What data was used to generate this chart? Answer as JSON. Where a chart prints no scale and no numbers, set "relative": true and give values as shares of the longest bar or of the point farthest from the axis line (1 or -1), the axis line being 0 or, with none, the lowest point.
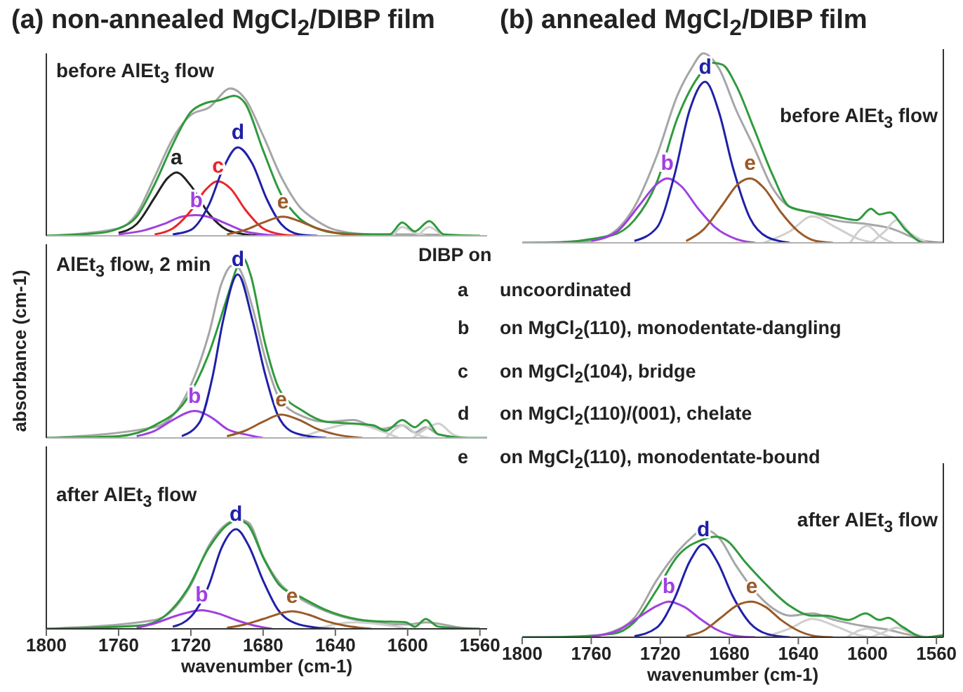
{
  "chart_data": [
    {
      "type": "line",
      "title": "(a)  non-annealed MgCl$_{2}$/DIBP film",
      "subtitle": "before AlEt$_{3}$ flow",
      "relative": true,
      "xlim": [
        1800,
        1556
      ],
      "xticks": [
        1800,
        1760,
        1720,
        1680,
        1640,
        1600,
        1560
      ],
      "tick_labels": false,
      "series": [
        {
          "color": "#a6a6a6",
          "x": [
            1800,
            1760,
            1750,
            1740,
            1730,
            1720,
            1710,
            1698,
            1690,
            1680,
            1670,
            1660,
            1650,
            1640,
            1620,
            1600,
            1560
          ],
          "values": [
            0,
            0.05,
            0.15,
            0.4,
            0.66,
            0.82,
            0.87,
            1,
            0.93,
            0.68,
            0.4,
            0.2,
            0.1,
            0.04,
            0.01,
            0.01,
            0
          ]
        },
        {
          "color": "#cfcfcf",
          "x": [
            1608,
            1603,
            1596,
            1590
          ],
          "values": [
            0,
            0.06,
            0.02,
            0
          ]
        },
        {
          "color": "#cfcfcf",
          "x": [
            1594,
            1588,
            1581,
            1575
          ],
          "values": [
            0,
            0.06,
            0.01,
            0
          ]
        },
        {
          "color": "#2f9a3c",
          "x": [
            1800,
            1770,
            1760,
            1750,
            1740,
            1730,
            1720,
            1712,
            1704,
            1696,
            1690,
            1680,
            1670,
            1660,
            1650,
            1640,
            1620,
            1610,
            1603,
            1596,
            1588,
            1580,
            1560
          ],
          "values": [
            0,
            0.02,
            0.05,
            0.13,
            0.35,
            0.62,
            0.84,
            0.9,
            0.92,
            0.95,
            0.9,
            0.58,
            0.28,
            0.12,
            0.05,
            0.02,
            0.01,
            0.01,
            0.09,
            0.03,
            0.1,
            0.01,
            0
          ]
        },
        {
          "name": "a",
          "color": "#222222",
          "x": [
            1760,
            1750,
            1740,
            1733,
            1728,
            1720,
            1710,
            1700,
            1690,
            1680
          ],
          "values": [
            0.02,
            0.08,
            0.26,
            0.39,
            0.43,
            0.34,
            0.15,
            0.04,
            0.01,
            0
          ]
        },
        {
          "name": "b",
          "color": "#a040e0",
          "x": [
            1760,
            1745,
            1735,
            1725,
            1717,
            1708,
            1700,
            1690,
            1680,
            1670
          ],
          "values": [
            0.01,
            0.04,
            0.08,
            0.13,
            0.14,
            0.12,
            0.08,
            0.03,
            0.01,
            0
          ]
        },
        {
          "name": "c",
          "color": "#e8262a",
          "x": [
            1740,
            1730,
            1720,
            1712,
            1705,
            1698,
            1690,
            1680,
            1670,
            1660
          ],
          "values": [
            0.01,
            0.05,
            0.17,
            0.31,
            0.37,
            0.32,
            0.18,
            0.05,
            0.01,
            0
          ]
        },
        {
          "name": "d",
          "color": "#2020a8",
          "x": [
            1730,
            1720,
            1710,
            1702,
            1694,
            1686,
            1678,
            1670,
            1660,
            1650
          ],
          "values": [
            0.01,
            0.04,
            0.21,
            0.46,
            0.6,
            0.49,
            0.25,
            0.08,
            0.01,
            0
          ]
        },
        {
          "name": "e",
          "color": "#9a5a28",
          "x": [
            1700,
            1690,
            1680,
            1669,
            1660,
            1650,
            1640,
            1625
          ],
          "values": [
            0.01,
            0.04,
            0.09,
            0.13,
            0.1,
            0.05,
            0.02,
            0
          ]
        }
      ]
    },
    {
      "type": "line",
      "subtitle": "AlEt$_{3}$ flow, 2 min",
      "ylabel": "absorbance (cm-1)",
      "relative": true,
      "xlim": [
        1800,
        1556
      ],
      "xticks": [
        1800,
        1760,
        1720,
        1680,
        1640,
        1600,
        1560
      ],
      "tick_labels": false,
      "series": [
        {
          "color": "#a6a6a6",
          "x": [
            1800,
            1740,
            1722,
            1710,
            1703,
            1697,
            1694,
            1686,
            1679,
            1671,
            1658,
            1645,
            1630,
            1615,
            1603,
            1596,
            1590,
            1583,
            1567
          ],
          "values": [
            0,
            0.06,
            0.25,
            0.58,
            0.86,
            0.96,
            0.95,
            0.73,
            0.45,
            0.22,
            0.12,
            0.09,
            0.1,
            0.05,
            0.07,
            0.03,
            0.06,
            0.02,
            0
          ]
        },
        {
          "color": "#cfcfcf",
          "x": [
            1660,
            1645,
            1630,
            1615,
            1605
          ],
          "values": [
            0,
            0.05,
            0.08,
            0.04,
            0
          ]
        },
        {
          "color": "#cfcfcf",
          "x": [
            1612,
            1602,
            1595,
            1588
          ],
          "values": [
            0,
            0.07,
            0.02,
            0
          ]
        },
        {
          "color": "#cfcfcf",
          "x": [
            1597,
            1590,
            1583,
            1575,
            1568
          ],
          "values": [
            0,
            0.05,
            0.08,
            0.02,
            0
          ]
        },
        {
          "color": "#2f9a3c",
          "x": [
            1800,
            1760,
            1740,
            1722,
            1710,
            1699,
            1694,
            1691,
            1687,
            1679,
            1671,
            1658,
            1645,
            1630,
            1619,
            1612,
            1603,
            1596,
            1590,
            1583,
            1567,
            1556
          ],
          "values": [
            0,
            0.01,
            0.07,
            0.22,
            0.47,
            0.81,
            0.96,
            1,
            0.91,
            0.53,
            0.27,
            0.15,
            0.09,
            0.08,
            0.07,
            0.04,
            0.1,
            0.06,
            0.1,
            0.02,
            0,
            0
          ]
        },
        {
          "name": "b",
          "color": "#a040e0",
          "x": [
            1750,
            1740,
            1730,
            1718,
            1708,
            1700,
            1690,
            1680
          ],
          "values": [
            0.01,
            0.04,
            0.1,
            0.15,
            0.11,
            0.05,
            0.02,
            0
          ]
        },
        {
          "name": "d",
          "color": "#2020a8",
          "x": [
            1725,
            1715,
            1708,
            1702,
            1694,
            1686,
            1679,
            1672,
            1665,
            1655,
            1645
          ],
          "values": [
            0.01,
            0.09,
            0.34,
            0.66,
            0.91,
            0.66,
            0.36,
            0.13,
            0.04,
            0.01,
            0
          ]
        },
        {
          "name": "e",
          "color": "#9a5a28",
          "x": [
            1700,
            1690,
            1680,
            1670,
            1660,
            1650,
            1640,
            1625
          ],
          "values": [
            0.01,
            0.04,
            0.09,
            0.13,
            0.1,
            0.05,
            0.02,
            0
          ]
        }
      ]
    },
    {
      "type": "line",
      "subtitle": "after AlEt$_{3}$ flow",
      "xlabel": "wavenumber (cm-1)",
      "relative": true,
      "xlim": [
        1800,
        1556
      ],
      "xticks": [
        1800,
        1760,
        1720,
        1680,
        1640,
        1600,
        1560
      ],
      "tick_labels": "x",
      "series": [
        {
          "color": "#a6a6a6",
          "x": [
            1800,
            1740,
            1720,
            1710,
            1700,
            1694,
            1688,
            1680,
            1670,
            1660,
            1645,
            1620,
            1600,
            1590,
            1570,
            1560
          ],
          "values": [
            0,
            0.08,
            0.4,
            0.76,
            0.96,
            1,
            0.97,
            0.66,
            0.4,
            0.28,
            0.16,
            0.06,
            0.04,
            0.06,
            0.01,
            0
          ]
        },
        {
          "color": "#cfcfcf",
          "x": [
            1650,
            1630,
            1610,
            1600
          ],
          "values": [
            0,
            0.06,
            0.03,
            0
          ]
        },
        {
          "color": "#2f9a3c",
          "x": [
            1800,
            1748,
            1735,
            1722,
            1710,
            1699,
            1694,
            1689,
            1679,
            1671,
            1658,
            1645,
            1619,
            1601,
            1596,
            1590,
            1583,
            1560
          ],
          "values": [
            0,
            0.03,
            0.11,
            0.36,
            0.74,
            0.96,
            0.99,
            0.96,
            0.62,
            0.4,
            0.28,
            0.17,
            0.07,
            0.06,
            0.02,
            0.09,
            0.02,
            0
          ]
        },
        {
          "name": "b",
          "color": "#a040e0",
          "x": [
            1750,
            1740,
            1728,
            1714,
            1705,
            1695,
            1685,
            1675
          ],
          "values": [
            0.01,
            0.05,
            0.12,
            0.17,
            0.14,
            0.08,
            0.03,
            0
          ]
        },
        {
          "name": "d",
          "color": "#2020a8",
          "x": [
            1730,
            1720,
            1710,
            1703,
            1695,
            1688,
            1680,
            1672,
            1662,
            1650,
            1640
          ],
          "values": [
            0.02,
            0.11,
            0.4,
            0.74,
            0.91,
            0.76,
            0.44,
            0.18,
            0.05,
            0.01,
            0
          ]
        },
        {
          "name": "e",
          "color": "#9a5a28",
          "x": [
            1700,
            1690,
            1680,
            1664,
            1655,
            1645,
            1635,
            1620
          ],
          "values": [
            0.01,
            0.04,
            0.09,
            0.16,
            0.13,
            0.07,
            0.03,
            0
          ]
        }
      ]
    },
    {
      "type": "line",
      "title": "(b)  annealed MgCl$_{2}$/DIBP film",
      "subtitle": "before AlEt$_{3}$ flow",
      "relative": true,
      "xlim": [
        1800,
        1556
      ],
      "xticks": [
        1800,
        1760,
        1720,
        1680,
        1640,
        1600,
        1560
      ],
      "tick_labels": false,
      "series": [
        {
          "color": "#a6a6a6",
          "x": [
            1800,
            1761,
            1748,
            1735,
            1722,
            1710,
            1702,
            1695,
            1686,
            1676,
            1666,
            1655,
            1645,
            1632,
            1619,
            1601,
            1588,
            1567,
            1556
          ],
          "values": [
            0,
            0.01,
            0.05,
            0.19,
            0.46,
            0.78,
            0.92,
            1,
            0.92,
            0.7,
            0.51,
            0.29,
            0.19,
            0.16,
            0.12,
            0.1,
            0.08,
            0.01,
            0
          ]
        },
        {
          "color": "#cfcfcf",
          "x": [
            1660,
            1645,
            1632,
            1618,
            1605,
            1595
          ],
          "values": [
            0,
            0.06,
            0.14,
            0.08,
            0.02,
            0
          ]
        },
        {
          "color": "#cfcfcf",
          "x": [
            1610,
            1600,
            1592,
            1585
          ],
          "values": [
            0,
            0.09,
            0.03,
            0
          ]
        },
        {
          "color": "#cfcfcf",
          "x": [
            1598,
            1590,
            1583,
            1575,
            1565
          ],
          "values": [
            0,
            0.06,
            0.12,
            0.05,
            0
          ]
        },
        {
          "color": "#2f9a3c",
          "x": [
            1800,
            1787,
            1748,
            1735,
            1722,
            1710,
            1696,
            1690,
            1684,
            1676,
            1666,
            1655,
            1645,
            1632,
            1619,
            1606,
            1598,
            1593,
            1587,
            1578,
            1567,
            1556
          ],
          "values": [
            0,
            0,
            0.04,
            0.12,
            0.32,
            0.66,
            0.9,
            0.95,
            0.94,
            0.83,
            0.61,
            0.36,
            0.19,
            0.16,
            0.14,
            0.12,
            0.18,
            0.15,
            0.16,
            0.07,
            0,
            0
          ]
        },
        {
          "name": "b",
          "color": "#a040e0",
          "x": [
            1760,
            1745,
            1732,
            1722,
            1716,
            1708,
            1698,
            1688,
            1676,
            1665
          ],
          "values": [
            0.01,
            0.06,
            0.2,
            0.31,
            0.34,
            0.3,
            0.18,
            0.08,
            0.02,
            0
          ]
        },
        {
          "name": "d",
          "color": "#2020a8",
          "x": [
            1735,
            1722,
            1712,
            1703,
            1694,
            1686,
            1678,
            1668,
            1658,
            1645
          ],
          "values": [
            0.01,
            0.08,
            0.35,
            0.7,
            0.85,
            0.69,
            0.4,
            0.13,
            0.03,
            0
          ]
        },
        {
          "name": "e",
          "color": "#9a5a28",
          "x": [
            1705,
            1695,
            1684,
            1675,
            1668,
            1660,
            1650,
            1640,
            1630,
            1620
          ],
          "values": [
            0.01,
            0.07,
            0.2,
            0.31,
            0.34,
            0.29,
            0.16,
            0.06,
            0.01,
            0
          ]
        }
      ]
    },
    {
      "type": "line",
      "subtitle": "after AlEt$_{3}$ flow",
      "xlabel": "wavenumber (cm-1)",
      "relative": true,
      "xlim": [
        1800,
        1556
      ],
      "xticks": [
        1800,
        1760,
        1720,
        1680,
        1640,
        1600,
        1560
      ],
      "tick_labels": "x",
      "series": [
        {
          "color": "#a6a6a6",
          "x": [
            1800,
            1761,
            1748,
            1735,
            1722,
            1710,
            1702,
            1695,
            1686,
            1676,
            1666,
            1655,
            1645,
            1632,
            1619,
            1601,
            1588,
            1578,
            1567
          ],
          "values": [
            0,
            0.01,
            0.05,
            0.18,
            0.53,
            0.79,
            0.92,
            1,
            0.92,
            0.66,
            0.44,
            0.27,
            0.2,
            0.22,
            0.16,
            0.1,
            0.07,
            0.03,
            0
          ]
        },
        {
          "color": "#cfcfcf",
          "x": [
            1660,
            1645,
            1632,
            1618,
            1605,
            1595
          ],
          "values": [
            0,
            0.08,
            0.17,
            0.1,
            0.02,
            0
          ]
        },
        {
          "color": "#cfcfcf",
          "x": [
            1612,
            1600,
            1592,
            1585
          ],
          "values": [
            0,
            0.08,
            0.03,
            0
          ]
        },
        {
          "color": "#cfcfcf",
          "x": [
            1598,
            1590,
            1583,
            1575,
            1565
          ],
          "values": [
            0,
            0.05,
            0.09,
            0.04,
            0
          ]
        },
        {
          "color": "#2f9a3c",
          "x": [
            1800,
            1787,
            1748,
            1735,
            1722,
            1710,
            1696,
            1688,
            1681,
            1671,
            1660,
            1645,
            1632,
            1624,
            1611,
            1601,
            1593,
            1588,
            1580,
            1567,
            1556
          ],
          "values": [
            0,
            0,
            0.03,
            0.14,
            0.44,
            0.75,
            0.9,
            0.93,
            0.89,
            0.7,
            0.51,
            0.29,
            0.2,
            0.2,
            0.16,
            0.22,
            0.16,
            0.18,
            0.1,
            0,
            0.02
          ]
        },
        {
          "name": "b",
          "color": "#a040e0",
          "x": [
            1760,
            1745,
            1732,
            1722,
            1715,
            1706,
            1696,
            1686,
            1675,
            1665
          ],
          "values": [
            0.01,
            0.06,
            0.19,
            0.29,
            0.33,
            0.28,
            0.16,
            0.06,
            0.01,
            0
          ]
        },
        {
          "name": "d",
          "color": "#2020a8",
          "x": [
            1735,
            1722,
            1712,
            1703,
            1695,
            1687,
            1678,
            1668,
            1658,
            1645
          ],
          "values": [
            0.01,
            0.09,
            0.35,
            0.7,
            0.86,
            0.7,
            0.38,
            0.13,
            0.03,
            0
          ]
        },
        {
          "name": "e",
          "color": "#9a5a28",
          "x": [
            1705,
            1695,
            1685,
            1675,
            1667,
            1659,
            1650,
            1640,
            1630,
            1620
          ],
          "values": [
            0.01,
            0.06,
            0.18,
            0.3,
            0.33,
            0.28,
            0.16,
            0.06,
            0.01,
            0
          ]
        }
      ]
    },
    {
      "type": "other",
      "title": "DIBP on",
      "annotations": [
        "a",
        "uncoordinated",
        "b",
        "on MgCl$_{2}$(110), monodentate-dangling",
        "c",
        "on MgCl$_{2}$(104), bridge",
        "d",
        "on MgCl$_{2}$(110)/(001), chelate",
        "e",
        "on MgCl$_{2}$(110), monodentate-bound"
      ]
    }
  ]
}
